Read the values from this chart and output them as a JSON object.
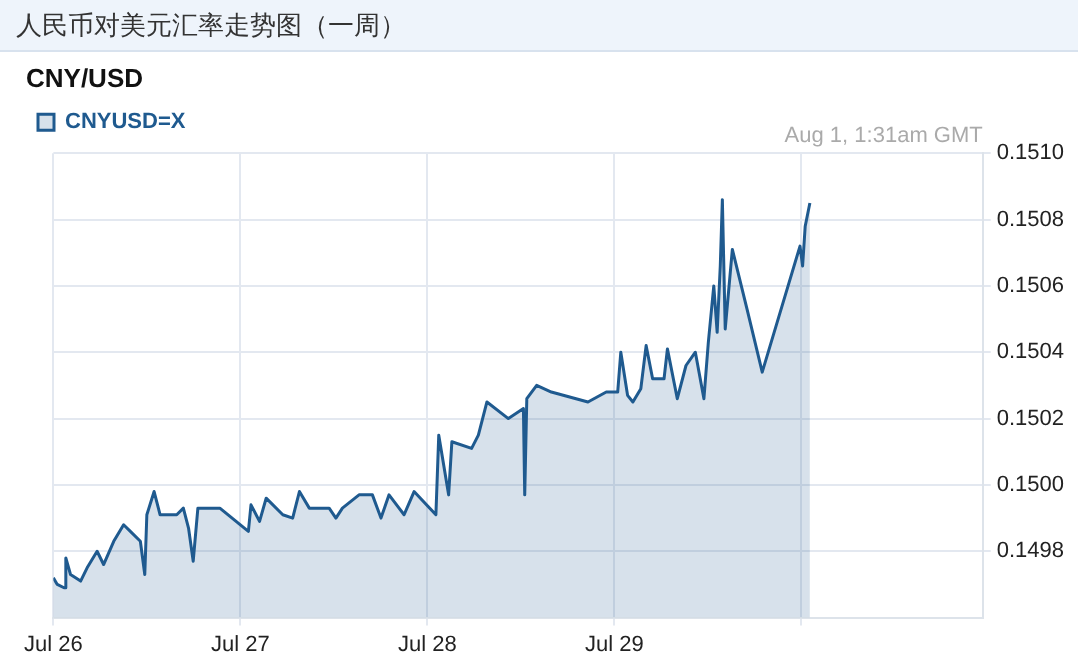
{
  "chart_data": {
    "type": "area",
    "title": "人民币对美元汇率走势图（一周）",
    "subtitle": "CNY/USD",
    "annotations": [
      "Aug 1, 1:31am GMT"
    ],
    "x": [
      "--07-26T00:00",
      "--07-26T00:30",
      "--07-26T01:22",
      "--07-26T01:36",
      "--07-26T02:12",
      "--07-26T03:30",
      "--07-26T04:20",
      "--07-26T05:37",
      "--07-26T06:27",
      "--07-26T07:45",
      "--07-26T09:01",
      "--07-26T09:53",
      "--07-26T11:10",
      "--07-26T11:44",
      "--07-26T12:00",
      "--07-26T12:56",
      "--07-26T13:42",
      "--07-26T15:50",
      "--07-26T16:41",
      "--07-26T17:21",
      "--07-26T17:57",
      "--07-26T18:33",
      "--07-26T21:22",
      "--07-27T01:02",
      "--07-27T01:22",
      "--07-27T02:28",
      "--07-27T03:19",
      "--07-27T05:27",
      "--07-27T06:43",
      "--07-27T07:35",
      "--07-27T08:51",
      "--07-27T11:24",
      "--07-27T12:16",
      "--07-27T13:06",
      "--07-27T15:14",
      "--07-27T16:57",
      "--07-27T18:03",
      "--07-27T19:05",
      "--07-27T21:01",
      "--07-27T22:18",
      "--07-28T01:06",
      "--07-28T01:28",
      "--07-28T02:44",
      "--07-28T03:09",
      "--07-28T05:41",
      "--07-28T06:33",
      "--07-28T07:39",
      "--07-28T10:24",
      "--07-28T12:20",
      "--07-28T12:30",
      "--07-28T12:46",
      "--07-28T14:02",
      "--07-28T15:55",
      "--07-28T20:37",
      "--07-28T22:58",
      "--07-29T00:26",
      "--07-29T00:50",
      "--07-29T01:42",
      "--07-29T02:23",
      "--07-29T03:24",
      "--07-29T04:05",
      "--07-29T04:55",
      "--07-29T06:23",
      "--07-29T06:49",
      "--07-29T08:05",
      "--07-29T09:12",
      "--07-29T10:24",
      "--07-29T11:30",
      "--07-29T12:04",
      "--07-29T12:46",
      "--07-29T13:12",
      "--07-29T13:36",
      "--07-29T13:52",
      "--07-29T14:14",
      "--07-29T15:09",
      "--07-29T17:02",
      "--07-29T18:59",
      "--07-29T23:50",
      "--07-30T00:10",
      "--07-30T00:30",
      "--07-30T01:06"
    ],
    "series": [
      {
        "name": "CNYUSD=X",
        "color": "#1f5a8f",
        "values": [
          0.14972,
          0.1497,
          0.14969,
          0.14978,
          0.14973,
          0.14971,
          0.14975,
          0.1498,
          0.14976,
          0.14983,
          0.14988,
          0.14986,
          0.14983,
          0.14973,
          0.14991,
          0.14998,
          0.14991,
          0.14991,
          0.14993,
          0.14987,
          0.14977,
          0.14993,
          0.14993,
          0.14986,
          0.14994,
          0.14989,
          0.14996,
          0.14991,
          0.1499,
          0.14998,
          0.14993,
          0.14993,
          0.1499,
          0.14993,
          0.14997,
          0.14997,
          0.1499,
          0.14997,
          0.14991,
          0.14998,
          0.14991,
          0.15015,
          0.14997,
          0.15013,
          0.15011,
          0.15015,
          0.15025,
          0.1502,
          0.15023,
          0.14997,
          0.15026,
          0.1503,
          0.15028,
          0.15025,
          0.15028,
          0.15028,
          0.1504,
          0.15027,
          0.15025,
          0.15029,
          0.15042,
          0.15032,
          0.15032,
          0.15041,
          0.15026,
          0.15036,
          0.1504,
          0.15026,
          0.15043,
          0.1506,
          0.15046,
          0.15066,
          0.15086,
          0.15047,
          0.15071,
          0.15053,
          0.15034,
          0.15072,
          0.15066,
          0.15078,
          0.15085
        ]
      }
    ],
    "xlim": [
      "--07-26T00:00",
      "--07-30T23:17"
    ],
    "xticks": [
      {
        "value": "--07-26",
        "label": "Jul 26"
      },
      {
        "value": "--07-27",
        "label": "Jul 27"
      },
      {
        "value": "--07-28",
        "label": "Jul 28"
      },
      {
        "value": "--07-29",
        "label": "Jul 29"
      },
      {
        "value": "--07-30",
        "label": null
      }
    ],
    "ylim": [
      0.1496,
      0.151
    ],
    "yticks": [
      {
        "value": 0.1498,
        "label": "0.1498"
      },
      {
        "value": 0.15,
        "label": "0.1500"
      },
      {
        "value": 0.1502,
        "label": "0.1502"
      },
      {
        "value": 0.1504,
        "label": "0.1504"
      },
      {
        "value": 0.1506,
        "label": "0.1506"
      },
      {
        "value": 0.1508,
        "label": "0.1508"
      },
      {
        "value": 0.151,
        "label": "0.1510"
      }
    ],
    "grid": true,
    "legend": "top left",
    "marker": "none",
    "line_style": "solid"
  }
}
